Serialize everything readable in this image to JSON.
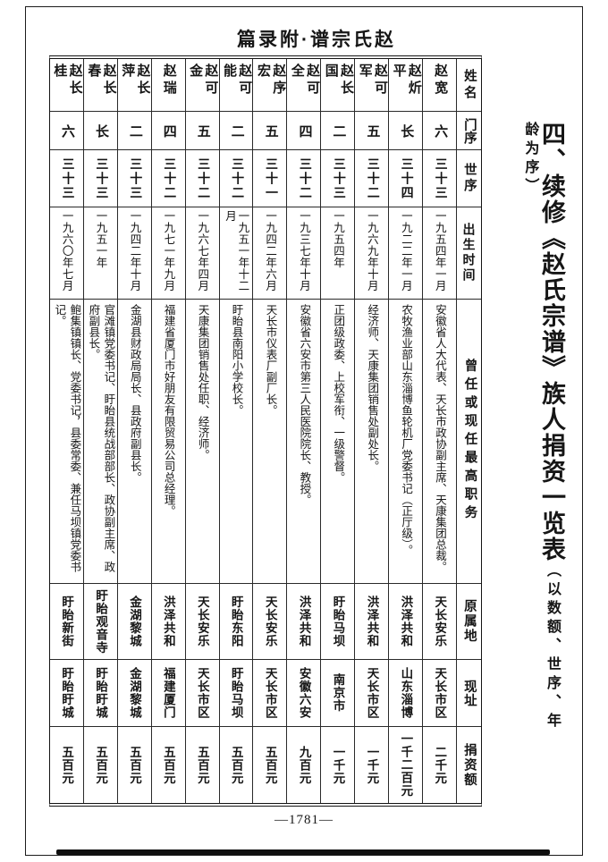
{
  "page": {
    "running_head": "篇录附·谱宗氏赵",
    "page_number": "—1781—"
  },
  "title": {
    "main": "四、续修《赵氏宗谱》族人捐资一览表",
    "subtitle": "（以数额、世序、年龄为序）"
  },
  "table": {
    "headers": {
      "name": "姓名",
      "branch": "门序",
      "generation": "世序",
      "birth": "出生时间",
      "position": "曾任或现任最高职务",
      "origin": "原属地",
      "address": "现址",
      "donation": "捐资额"
    },
    "reading_order": "right-to-left",
    "people": [
      {
        "name": "赵宽",
        "branch": "六",
        "generation": "三十三",
        "birth": "一九五四年一月",
        "position": "安徽省人大代表、天长市政协副主席、天康集团总裁。",
        "origin": "天长安乐",
        "address": "天长市区",
        "donation": "二千元"
      },
      {
        "name": "赵炘平",
        "branch": "长",
        "generation": "三十四",
        "birth": "一九二二年一月",
        "position": "农牧渔业部山东淄博鱼轮机厂党委书记（正厅级）。",
        "origin": "洪泽共和",
        "address": "山东淄博",
        "donation": "一千二百元"
      },
      {
        "name": "赵可军",
        "branch": "五",
        "generation": "三十二",
        "birth": "一九六九年十月",
        "position": "经济师、天康集团销售处副处长。",
        "origin": "洪泽共和",
        "address": "天长市区",
        "donation": "一千元"
      },
      {
        "name": "赵长国",
        "branch": "二",
        "generation": "三十三",
        "birth": "一九五四年",
        "position": "正团级政委、上校军衔、一级警督。",
        "origin": "盱眙马坝",
        "address": "南京市",
        "donation": "一千元"
      },
      {
        "name": "赵可全",
        "branch": "四",
        "generation": "三十二",
        "birth": "一九三七年十月",
        "position": "安徽省六安市第三人民医院院长、教授。",
        "origin": "洪泽共和",
        "address": "安徽六安",
        "donation": "九百元"
      },
      {
        "name": "赵序宏",
        "branch": "五",
        "generation": "三十一",
        "birth": "一九四二年六月",
        "position": "天长市仪表厂副厂长。",
        "origin": "天长安乐",
        "address": "天长市区",
        "donation": "五百元"
      },
      {
        "name": "赵可能",
        "branch": "二",
        "generation": "三十二",
        "birth": "一九五一年十二月",
        "position": "盱眙县南阳小学校长。",
        "origin": "盱眙东阳",
        "address": "盱眙马坝",
        "donation": "五百元"
      },
      {
        "name": "赵可金",
        "branch": "五",
        "generation": "三十二",
        "birth": "一九六七年四月",
        "position": "天康集团销售处任职、经济师。",
        "origin": "天长安乐",
        "address": "天长市区",
        "donation": "五百元"
      },
      {
        "name": "赵瑞",
        "branch": "四",
        "generation": "三十二",
        "birth": "一九七一年九月",
        "position": "福建省厦门市好朋友有限贸易公司总经理。",
        "origin": "洪泽共和",
        "address": "福建厦门",
        "donation": "五百元"
      },
      {
        "name": "赵长萍",
        "branch": "二",
        "generation": "三十三",
        "birth": "一九四二年十月",
        "position": "金湖县财政局局长、县政府副县长。",
        "origin": "金湖黎城",
        "address": "金湖黎城",
        "donation": "五百元"
      },
      {
        "name": "赵长春",
        "branch": "长",
        "generation": "三十三",
        "birth": "一九五一年",
        "position": "官滩镇党委书记、盱眙县统战部部长、政协副主席、政府副县长。",
        "origin": "盱眙观音寺",
        "address": "盱眙盱城",
        "donation": "五百元"
      },
      {
        "name": "赵长桂",
        "branch": "六",
        "generation": "三十三",
        "birth": "一九六〇年七月",
        "position": "鲍集镇镇长、党委书记，县委常委、兼任马坝镇党委书记。",
        "origin": "盱眙新街",
        "address": "盱眙盱城",
        "donation": "五百元"
      }
    ]
  }
}
